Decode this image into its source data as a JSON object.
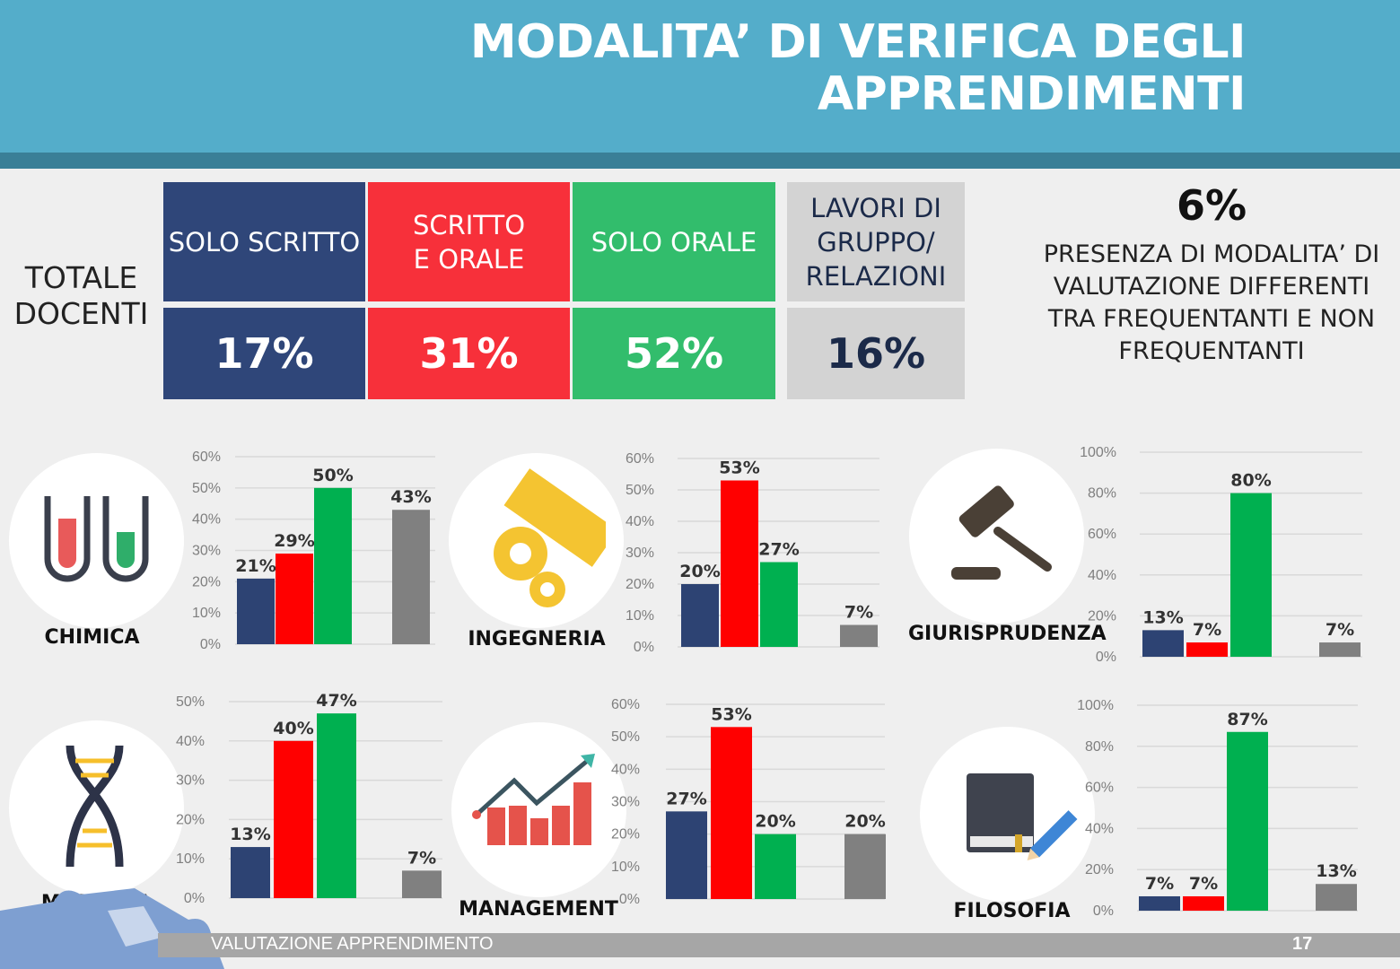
{
  "header": {
    "title_line1": "MODALITA’ DI VERIFICA DEGLI",
    "title_line2": "APPRENDIMENTI"
  },
  "colors": {
    "blue": "#2d4373",
    "red": "#ff0000",
    "green": "#00b050",
    "gray": "#808080",
    "header": "#54adca",
    "cell_red": "#f7303a",
    "cell_green": "#32bd6c",
    "cell_gray": "#d3d3d3",
    "cell_blue": "#2f4679"
  },
  "totale": {
    "line1": "TOTALE",
    "line2": "DOCENTI"
  },
  "summary": [
    {
      "head": "SOLO SCRITTO",
      "value": "17%"
    },
    {
      "head": "SCRITTO E ORALE",
      "value": "31%"
    },
    {
      "head": "SOLO ORALE",
      "value": "52%"
    },
    {
      "head": "LAVORI DI GRUPPO/ RELAZIONI",
      "value": "16%"
    }
  ],
  "presence": {
    "value": "6%",
    "text": "PRESENZA DI MODALITA’ DI VALUTAZIONE DIFFERENTI TRA FREQUENTANTI E NON FREQUENTANTI"
  },
  "chart_data": [
    {
      "type": "bar",
      "category_label": "CHIMICA",
      "icon": "test-tubes-icon",
      "ylim": [
        0,
        60
      ],
      "yticks": [
        "0%",
        "10%",
        "20%",
        "30%",
        "40%",
        "50%",
        "60%"
      ],
      "values": [
        21,
        29,
        50,
        43
      ],
      "labels": [
        "21%",
        "29%",
        "50%",
        "43%"
      ]
    },
    {
      "type": "bar",
      "category_label": "INGEGNERIA",
      "icon": "gears-ruler-icon",
      "ylim": [
        0,
        60
      ],
      "yticks": [
        "0%",
        "10%",
        "20%",
        "30%",
        "40%",
        "50%",
        "60%"
      ],
      "values": [
        20,
        53,
        27,
        7
      ],
      "labels": [
        "20%",
        "53%",
        "27%",
        "7%"
      ]
    },
    {
      "type": "bar",
      "category_label": "GIURISPRUDENZA",
      "icon": "gavel-icon",
      "ylim": [
        0,
        100
      ],
      "yticks": [
        "0%",
        "20%",
        "40%",
        "60%",
        "80%",
        "100%"
      ],
      "values": [
        13,
        7,
        80,
        7
      ],
      "labels": [
        "13%",
        "7%",
        "80%",
        "7%"
      ]
    },
    {
      "type": "bar",
      "category_label": "MEDICINA",
      "icon": "dna-icon",
      "ylim": [
        0,
        50
      ],
      "yticks": [
        "0%",
        "10%",
        "20%",
        "30%",
        "40%",
        "50%"
      ],
      "values": [
        13,
        40,
        47,
        7
      ],
      "labels": [
        "13%",
        "40%",
        "47%",
        "7%"
      ]
    },
    {
      "type": "bar",
      "category_label": "MANAGEMENT",
      "icon": "growth-chart-icon",
      "ylim": [
        0,
        60
      ],
      "yticks": [
        "0%",
        "10%",
        "20%",
        "30%",
        "40%",
        "50%",
        "60%"
      ],
      "values": [
        27,
        53,
        20,
        20
      ],
      "labels": [
        "27%",
        "53%",
        "20%",
        "20%"
      ]
    },
    {
      "type": "bar",
      "category_label": "FILOSOFIA",
      "icon": "book-pencil-icon",
      "ylim": [
        0,
        100
      ],
      "yticks": [
        "0%",
        "20%",
        "40%",
        "60%",
        "80%",
        "100%"
      ],
      "values": [
        7,
        7,
        87,
        13
      ],
      "labels": [
        "7%",
        "7%",
        "87%",
        "13%"
      ]
    }
  ],
  "footer": {
    "text": "VALUTAZIONE APPRENDIMENTO",
    "page": "17"
  }
}
